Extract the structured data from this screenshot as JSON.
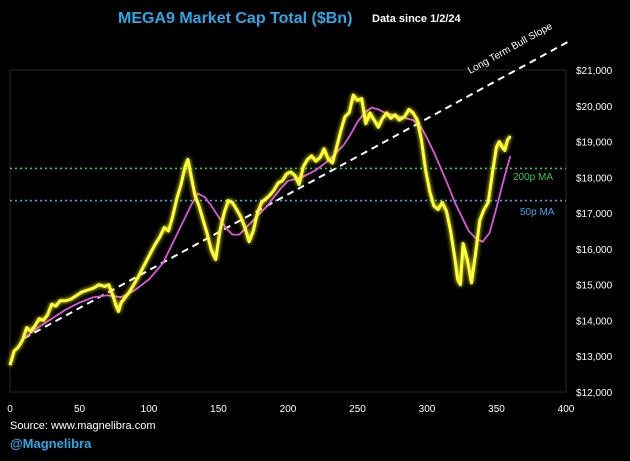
{
  "chart_data": {
    "type": "line",
    "title": "MEGA9 Market Cap Total ($Bn)",
    "subtitle": "Data since 1/2/24",
    "xlim": [
      0,
      400
    ],
    "ylim": [
      12000,
      21000
    ],
    "x_ticks": [
      0,
      50,
      100,
      150,
      200,
      250,
      300,
      350,
      400
    ],
    "y_ticks": [
      12000,
      13000,
      14000,
      15000,
      16000,
      17000,
      18000,
      19000,
      20000,
      21000
    ],
    "y_tick_labels": [
      "$12,000",
      "$13,000",
      "$14,000",
      "$15,000",
      "$16,000",
      "$17,000",
      "$18,000",
      "$19,000",
      "$20,000",
      "$21,000"
    ],
    "series": [
      {
        "name": "MEGA9 Market Cap",
        "color": "#ffff33",
        "points": [
          [
            0,
            12750
          ],
          [
            3,
            13150
          ],
          [
            6,
            13250
          ],
          [
            9,
            13450
          ],
          [
            12,
            13800
          ],
          [
            15,
            13700
          ],
          [
            18,
            13850
          ],
          [
            21,
            14050
          ],
          [
            24,
            14000
          ],
          [
            27,
            14150
          ],
          [
            30,
            14450
          ],
          [
            33,
            14400
          ],
          [
            36,
            14550
          ],
          [
            40,
            14550
          ],
          [
            44,
            14600
          ],
          [
            48,
            14700
          ],
          [
            52,
            14800
          ],
          [
            56,
            14850
          ],
          [
            60,
            14900
          ],
          [
            64,
            15000
          ],
          [
            68,
            14950
          ],
          [
            71,
            15000
          ],
          [
            74,
            14700
          ],
          [
            76,
            14450
          ],
          [
            78,
            14250
          ],
          [
            80,
            14500
          ],
          [
            83,
            14650
          ],
          [
            86,
            14800
          ],
          [
            89,
            15000
          ],
          [
            92,
            15200
          ],
          [
            96,
            15500
          ],
          [
            100,
            15800
          ],
          [
            104,
            16100
          ],
          [
            108,
            16350
          ],
          [
            111,
            16600
          ],
          [
            114,
            16500
          ],
          [
            117,
            16900
          ],
          [
            120,
            17400
          ],
          [
            123,
            17800
          ],
          [
            126,
            18300
          ],
          [
            128,
            18500
          ],
          [
            130,
            18100
          ],
          [
            133,
            17500
          ],
          [
            136,
            17200
          ],
          [
            139,
            16800
          ],
          [
            142,
            16400
          ],
          [
            145,
            15950
          ],
          [
            148,
            15700
          ],
          [
            151,
            16500
          ],
          [
            154,
            17000
          ],
          [
            157,
            17350
          ],
          [
            160,
            17300
          ],
          [
            163,
            17100
          ],
          [
            166,
            16900
          ],
          [
            169,
            16600
          ],
          [
            172,
            16200
          ],
          [
            175,
            16500
          ],
          [
            178,
            17000
          ],
          [
            181,
            17300
          ],
          [
            184,
            17400
          ],
          [
            187,
            17500
          ],
          [
            190,
            17650
          ],
          [
            193,
            17850
          ],
          [
            196,
            17900
          ],
          [
            199,
            18100
          ],
          [
            202,
            18150
          ],
          [
            205,
            18050
          ],
          [
            208,
            17800
          ],
          [
            211,
            18300
          ],
          [
            214,
            18500
          ],
          [
            217,
            18600
          ],
          [
            220,
            18450
          ],
          [
            223,
            18550
          ],
          [
            226,
            18800
          ],
          [
            229,
            18500
          ],
          [
            232,
            18400
          ],
          [
            235,
            18850
          ],
          [
            238,
            19300
          ],
          [
            241,
            19700
          ],
          [
            244,
            19800
          ],
          [
            247,
            20300
          ],
          [
            250,
            20150
          ],
          [
            253,
            20200
          ],
          [
            256,
            19500
          ],
          [
            259,
            19800
          ],
          [
            262,
            19600
          ],
          [
            265,
            19400
          ],
          [
            268,
            19650
          ],
          [
            271,
            19800
          ],
          [
            274,
            19650
          ],
          [
            277,
            19750
          ],
          [
            280,
            19600
          ],
          [
            284,
            19700
          ],
          [
            287,
            19900
          ],
          [
            290,
            19800
          ],
          [
            293,
            19600
          ],
          [
            296,
            19050
          ],
          [
            299,
            18200
          ],
          [
            302,
            17600
          ],
          [
            305,
            17200
          ],
          [
            308,
            17100
          ],
          [
            311,
            17300
          ],
          [
            314,
            17050
          ],
          [
            317,
            16500
          ],
          [
            320,
            15750
          ],
          [
            322,
            15150
          ],
          [
            324,
            15000
          ],
          [
            326,
            16150
          ],
          [
            329,
            15700
          ],
          [
            332,
            15050
          ],
          [
            335,
            15900
          ],
          [
            338,
            16800
          ],
          [
            341,
            17100
          ],
          [
            344,
            17300
          ],
          [
            347,
            18100
          ],
          [
            350,
            18850
          ],
          [
            352,
            19000
          ],
          [
            354,
            18850
          ],
          [
            356,
            18750
          ],
          [
            358,
            19050
          ],
          [
            360,
            19150
          ]
        ]
      },
      {
        "name": "50p MA",
        "color": "#dd55dd",
        "points": [
          [
            10,
            13500
          ],
          [
            20,
            13800
          ],
          [
            30,
            14050
          ],
          [
            40,
            14300
          ],
          [
            50,
            14500
          ],
          [
            60,
            14650
          ],
          [
            70,
            14700
          ],
          [
            80,
            14650
          ],
          [
            90,
            14850
          ],
          [
            100,
            15150
          ],
          [
            110,
            15600
          ],
          [
            120,
            16400
          ],
          [
            130,
            17200
          ],
          [
            135,
            17550
          ],
          [
            140,
            17450
          ],
          [
            145,
            17200
          ],
          [
            150,
            16900
          ],
          [
            155,
            16600
          ],
          [
            160,
            16400
          ],
          [
            165,
            16400
          ],
          [
            170,
            16600
          ],
          [
            175,
            16800
          ],
          [
            180,
            17000
          ],
          [
            185,
            17200
          ],
          [
            190,
            17450
          ],
          [
            195,
            17700
          ],
          [
            200,
            17900
          ],
          [
            210,
            18000
          ],
          [
            220,
            18200
          ],
          [
            230,
            18500
          ],
          [
            240,
            18900
          ],
          [
            245,
            19200
          ],
          [
            250,
            19550
          ],
          [
            255,
            19800
          ],
          [
            260,
            19950
          ],
          [
            265,
            19900
          ],
          [
            270,
            19800
          ],
          [
            280,
            19700
          ],
          [
            290,
            19600
          ],
          [
            295,
            19450
          ],
          [
            300,
            19100
          ],
          [
            305,
            18700
          ],
          [
            310,
            18250
          ],
          [
            315,
            17800
          ],
          [
            320,
            17300
          ],
          [
            325,
            16900
          ],
          [
            330,
            16500
          ],
          [
            335,
            16300
          ],
          [
            340,
            16200
          ],
          [
            345,
            16450
          ],
          [
            350,
            17150
          ],
          [
            355,
            17900
          ],
          [
            360,
            18600
          ]
        ]
      },
      {
        "name": "Long Term Bull Slope",
        "color": "#ffffff",
        "points": [
          [
            10,
            13500
          ],
          [
            402,
            21800
          ]
        ]
      }
    ],
    "reference_lines": [
      {
        "label": "200p MA",
        "value": 18250,
        "color": "#33cc44"
      },
      {
        "label": "50p MA",
        "value": 17350,
        "color": "#33aaee"
      }
    ],
    "trendline_label": "Long Term Bull Slope"
  },
  "footer": {
    "source": "Source: www.magnelibra.com",
    "handle": "@Magnelibra"
  }
}
